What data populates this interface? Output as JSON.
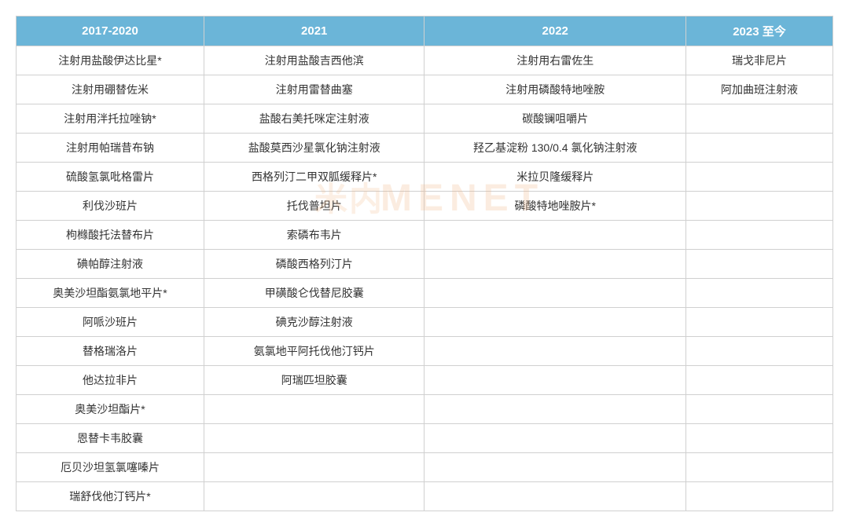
{
  "table": {
    "headers": [
      "2017-2020",
      "2021",
      "2022",
      "2023 至今"
    ],
    "header_bg_color": "#6bb5d8",
    "header_text_color": "#ffffff",
    "border_color": "#d0d0d0",
    "cell_text_color": "#333333",
    "column_widths": [
      "23%",
      "27%",
      "32%",
      "18%"
    ],
    "rows": [
      [
        "注射用盐酸伊达比星*",
        "注射用盐酸吉西他滨",
        "注射用右雷佐生",
        "瑞戈非尼片"
      ],
      [
        "注射用硼替佐米",
        "注射用雷替曲塞",
        "注射用磷酸特地唑胺",
        "阿加曲班注射液"
      ],
      [
        "注射用泮托拉唑钠*",
        "盐酸右美托咪定注射液",
        "碳酸镧咀嚼片",
        ""
      ],
      [
        "注射用帕瑞昔布钠",
        "盐酸莫西沙星氯化钠注射液",
        "羟乙基淀粉 130/0.4 氯化钠注射液",
        ""
      ],
      [
        "硫酸氢氯吡格雷片",
        "西格列汀二甲双胍缓释片*",
        "米拉贝隆缓释片",
        ""
      ],
      [
        "利伐沙班片",
        "托伐普坦片",
        "磷酸特地唑胺片*",
        ""
      ],
      [
        "枸橼酸托法替布片",
        "索磷布韦片",
        "",
        ""
      ],
      [
        "碘帕醇注射液",
        "磷酸西格列汀片",
        "",
        ""
      ],
      [
        "奥美沙坦酯氨氯地平片*",
        "甲磺酸仑伐替尼胶囊",
        "",
        ""
      ],
      [
        "阿哌沙班片",
        "碘克沙醇注射液",
        "",
        ""
      ],
      [
        "替格瑞洛片",
        "氨氯地平阿托伐他汀钙片",
        "",
        ""
      ],
      [
        "他达拉非片",
        "阿瑞匹坦胶囊",
        "",
        ""
      ],
      [
        "奥美沙坦酯片*",
        "",
        "",
        ""
      ],
      [
        "恩替卡韦胶囊",
        "",
        "",
        ""
      ],
      [
        "厄贝沙坦氢氯噻嗪片",
        "",
        "",
        ""
      ],
      [
        "瑞舒伐他汀钙片*",
        "",
        "",
        ""
      ]
    ]
  },
  "watermark": {
    "text_cn": "米内",
    "text_en": "MENET",
    "color": "rgba(240, 180, 130, 0.25)"
  }
}
